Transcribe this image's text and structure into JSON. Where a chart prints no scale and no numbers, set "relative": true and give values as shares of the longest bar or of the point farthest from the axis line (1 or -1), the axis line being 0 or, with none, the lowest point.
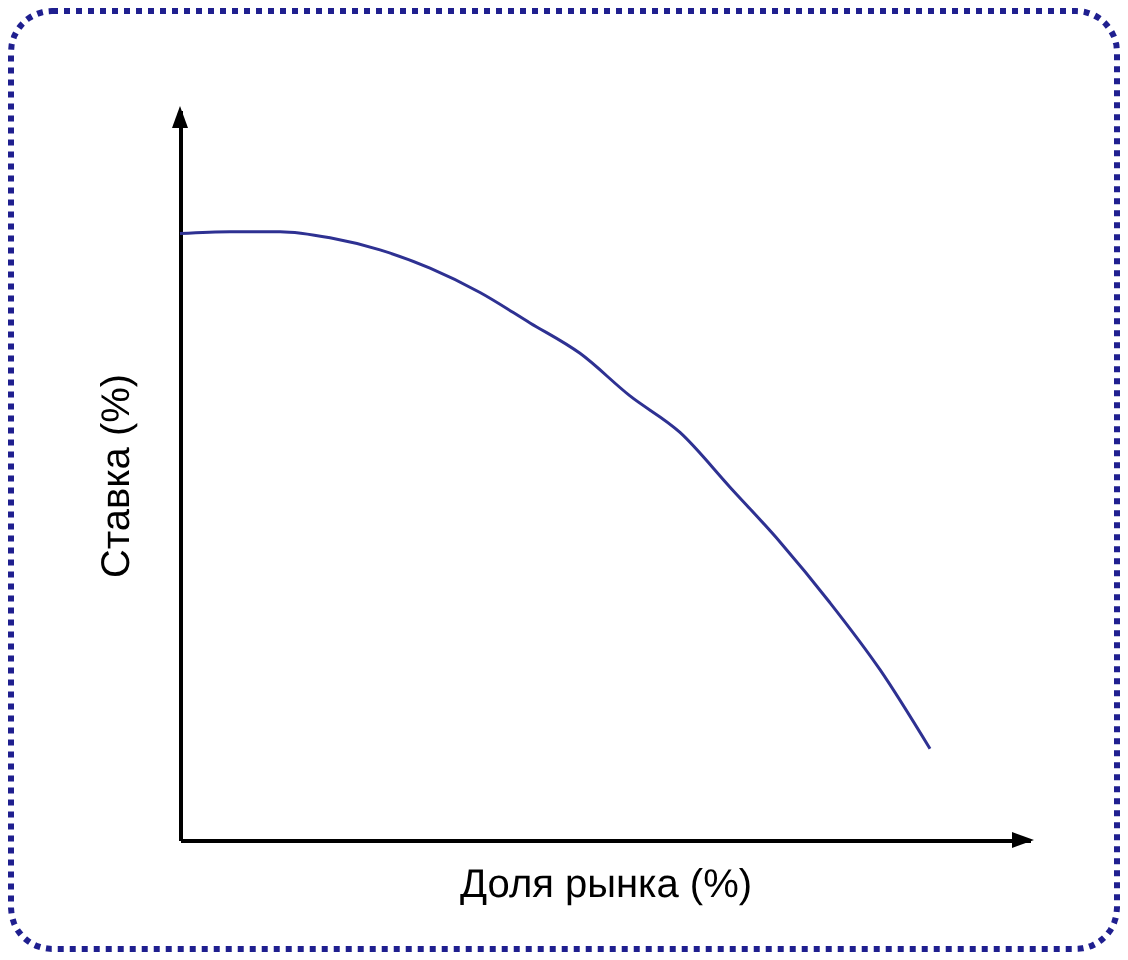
{
  "chart_data": {
    "type": "line",
    "xlabel": "Доля рынка (%)",
    "ylabel": "Ставка (%)",
    "relative": true,
    "categories": [
      null,
      null,
      null,
      null,
      null,
      null,
      null,
      null,
      null,
      null,
      null,
      null,
      null,
      null,
      null,
      null
    ],
    "series": [
      {
        "color": "#2e3192",
        "values": [
          0.997,
          1,
          1,
          0.99,
          0.97,
          0.94,
          0.9,
          0.85,
          0.8,
          0.73,
          0.67,
          0.58,
          0.49,
          0.39,
          0.28,
          0.15
        ]
      }
    ]
  }
}
